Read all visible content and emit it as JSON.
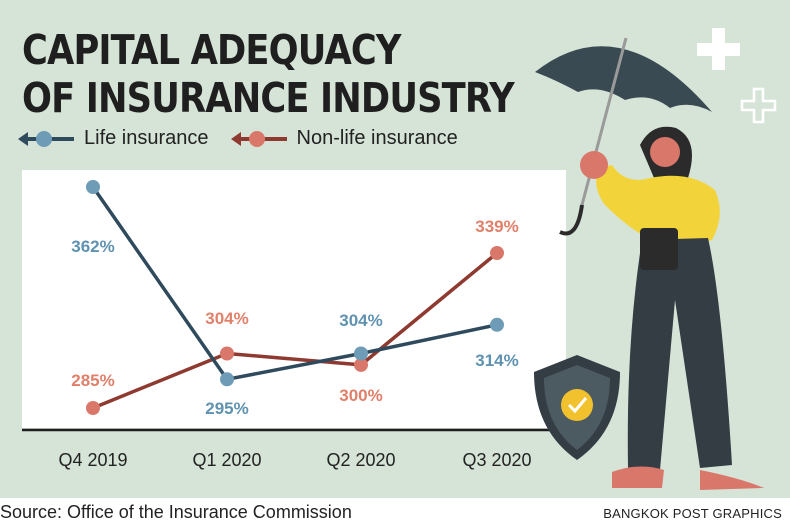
{
  "title_line1": "CAPITAL ADEQUACY",
  "title_line2": "OF INSURANCE INDUSTRY",
  "colors": {
    "background": "#d6e4d8",
    "life_line": "#2f4a5c",
    "life_dot": "#6e9bb5",
    "life_label": "#5f92b0",
    "nonlife_line": "#8e3a30",
    "nonlife_dot": "#d9776a",
    "nonlife_label": "#e0806a"
  },
  "chart_data": {
    "type": "line",
    "title": "CAPITAL ADEQUACY OF INSURANCE INDUSTRY",
    "categories": [
      "Q4 2019",
      "Q1 2020",
      "Q2 2020",
      "Q3 2020"
    ],
    "series": [
      {
        "name": "Life insurance",
        "values": [
          362,
          295,
          304,
          314
        ],
        "labels": [
          "362%",
          "295%",
          "304%",
          "314%"
        ]
      },
      {
        "name": "Non-life insurance",
        "values": [
          285,
          304,
          300,
          339
        ],
        "labels": [
          "285%",
          "304%",
          "300%",
          "339%"
        ]
      }
    ],
    "xlabel": "",
    "ylabel": "",
    "grid": false,
    "legend": "top-left"
  },
  "legend": {
    "life": "Life insurance",
    "nonlife": "Non-life insurance"
  },
  "source": "Source: Office of the Insurance Commission",
  "credit": "BANGKOK POST GRAPHICS",
  "icons": [
    "plus-icon",
    "plus-outline-icon",
    "shield-check-icon",
    "woman-with-umbrella-illustration"
  ]
}
